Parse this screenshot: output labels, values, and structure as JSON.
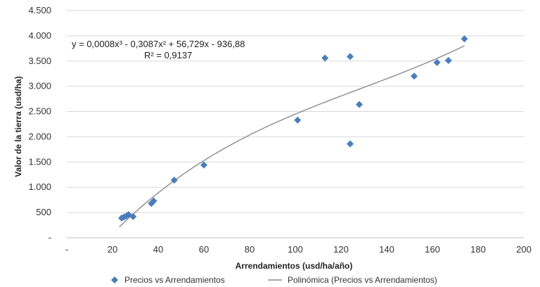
{
  "chart_data": {
    "type": "scatter",
    "xlabel": "Arrendamientos (usd/ha/año)",
    "ylabel": "Valor de la tierra (usd/ha)",
    "xlim": [
      0,
      200
    ],
    "ylim": [
      0,
      4500
    ],
    "x_ticks": [
      "-",
      "20",
      "40",
      "60",
      "80",
      "100",
      "120",
      "140",
      "160",
      "180",
      "200"
    ],
    "y_ticks": [
      "-",
      "500",
      "1.000",
      "1.500",
      "2.000",
      "2.500",
      "3.000",
      "3.500",
      "4.000",
      "4.500"
    ],
    "grid": "horizontal",
    "legend_position": "bottom",
    "series": [
      {
        "name": "Precios vs Arrendamientos",
        "color": "#4a7ebb",
        "marker": "diamond",
        "points": [
          {
            "x": 24,
            "y": 390
          },
          {
            "x": 25,
            "y": 410
          },
          {
            "x": 26,
            "y": 430
          },
          {
            "x": 27,
            "y": 460
          },
          {
            "x": 29,
            "y": 420
          },
          {
            "x": 37,
            "y": 680
          },
          {
            "x": 38,
            "y": 730
          },
          {
            "x": 47,
            "y": 1140
          },
          {
            "x": 60,
            "y": 1440
          },
          {
            "x": 101,
            "y": 2330
          },
          {
            "x": 113,
            "y": 3560
          },
          {
            "x": 124,
            "y": 3590
          },
          {
            "x": 124,
            "y": 1860
          },
          {
            "x": 128,
            "y": 2640
          },
          {
            "x": 152,
            "y": 3200
          },
          {
            "x": 162,
            "y": 3470
          },
          {
            "x": 167,
            "y": 3510
          },
          {
            "x": 174,
            "y": 3940
          }
        ]
      },
      {
        "name": "Polinómica (Precios vs Arrendamientos)",
        "type": "trendline",
        "color": "#8c8c8c",
        "x_range": [
          23,
          174
        ],
        "coefficients": {
          "a3": 0.0008,
          "a2": -0.3087,
          "a1": 56.729,
          "a0": -936.88
        }
      }
    ],
    "annotations": {
      "equation": "y = 0,0008x³ - 0,3087x² + 56,729x - 936,88",
      "r_squared": "R² = 0,9137"
    }
  }
}
